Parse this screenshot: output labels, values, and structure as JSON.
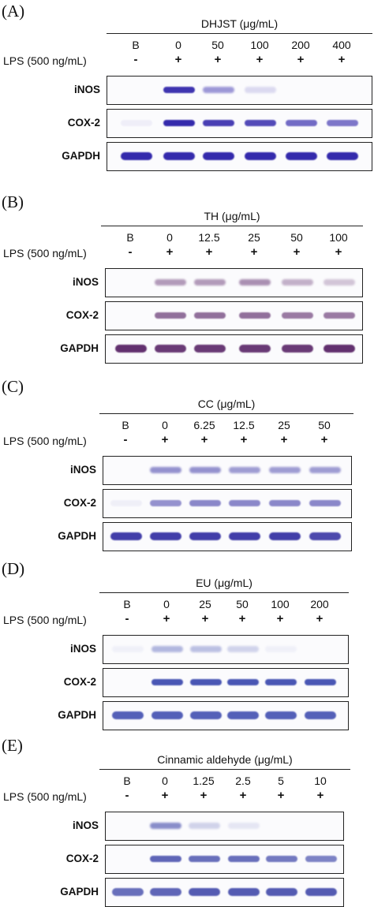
{
  "common": {
    "lps_label": "LPS (500 ng/mL)",
    "row_labels": [
      "iNOS",
      "COX-2",
      "GAPDH"
    ]
  },
  "colors": {
    "A": "#2a1fa8",
    "B": "#5a2668",
    "C": "#2f2aa0",
    "D": "#2b3aa8",
    "E": "#2b34a0"
  },
  "panels": [
    {
      "letter": "(A)",
      "treatment": "DHJST (μg/mL)",
      "lanes": [
        "B",
        "0",
        "50",
        "100",
        "200",
        "400"
      ],
      "signs": [
        "-",
        "+",
        "+",
        "+",
        "+",
        "+"
      ],
      "bands": {
        "iNOS": [
          0.0,
          0.9,
          0.45,
          0.15,
          0.0,
          0.0
        ],
        "COX-2": [
          0.05,
          0.95,
          0.85,
          0.8,
          0.65,
          0.6
        ],
        "GAPDH": [
          0.95,
          0.95,
          0.95,
          0.95,
          0.95,
          0.95
        ]
      }
    },
    {
      "letter": "(B)",
      "treatment": "TH (μg/mL)",
      "lanes": [
        "B",
        "0",
        "12.5",
        "25",
        "50",
        "100"
      ],
      "signs": [
        "-",
        "+",
        "+",
        "+",
        "+",
        "+"
      ],
      "bands": {
        "iNOS": [
          0.0,
          0.45,
          0.45,
          0.5,
          0.35,
          0.25
        ],
        "COX-2": [
          0.0,
          0.65,
          0.65,
          0.65,
          0.6,
          0.6
        ],
        "GAPDH": [
          0.95,
          0.9,
          0.9,
          0.9,
          0.9,
          0.95
        ]
      }
    },
    {
      "letter": "(C)",
      "treatment": "CC (μg/mL)",
      "lanes": [
        "B",
        "0",
        "6.25",
        "12.5",
        "25",
        "50"
      ],
      "signs": [
        "-",
        "+",
        "+",
        "+",
        "+",
        "+"
      ],
      "bands": {
        "iNOS": [
          0.0,
          0.5,
          0.5,
          0.45,
          0.45,
          0.45
        ],
        "COX-2": [
          0.05,
          0.5,
          0.55,
          0.55,
          0.55,
          0.55
        ],
        "GAPDH": [
          0.9,
          0.9,
          0.9,
          0.9,
          0.9,
          0.85
        ]
      }
    },
    {
      "letter": "(D)",
      "treatment": "EU (μg/mL)",
      "lanes": [
        "B",
        "0",
        "25",
        "50",
        "100",
        "200"
      ],
      "signs": [
        "-",
        "+",
        "+",
        "+",
        "+",
        "+"
      ],
      "bands": {
        "iNOS": [
          0.05,
          0.35,
          0.3,
          0.2,
          0.05,
          0.0
        ],
        "COX-2": [
          0.0,
          0.85,
          0.85,
          0.85,
          0.85,
          0.85
        ],
        "GAPDH": [
          0.8,
          0.8,
          0.8,
          0.8,
          0.8,
          0.8
        ]
      }
    },
    {
      "letter": "(E)",
      "treatment": "Cinnamic aldehyde (μg/mL)",
      "lanes": [
        "B",
        "0",
        "1.25",
        "2.5",
        "5",
        "10"
      ],
      "signs": [
        "-",
        "+",
        "+",
        "+",
        "+",
        "+"
      ],
      "bands": {
        "iNOS": [
          0.0,
          0.55,
          0.2,
          0.1,
          0.0,
          0.0
        ],
        "COX-2": [
          0.0,
          0.75,
          0.7,
          0.7,
          0.65,
          0.6
        ],
        "GAPDH": [
          0.7,
          0.75,
          0.8,
          0.8,
          0.8,
          0.8
        ]
      }
    }
  ]
}
